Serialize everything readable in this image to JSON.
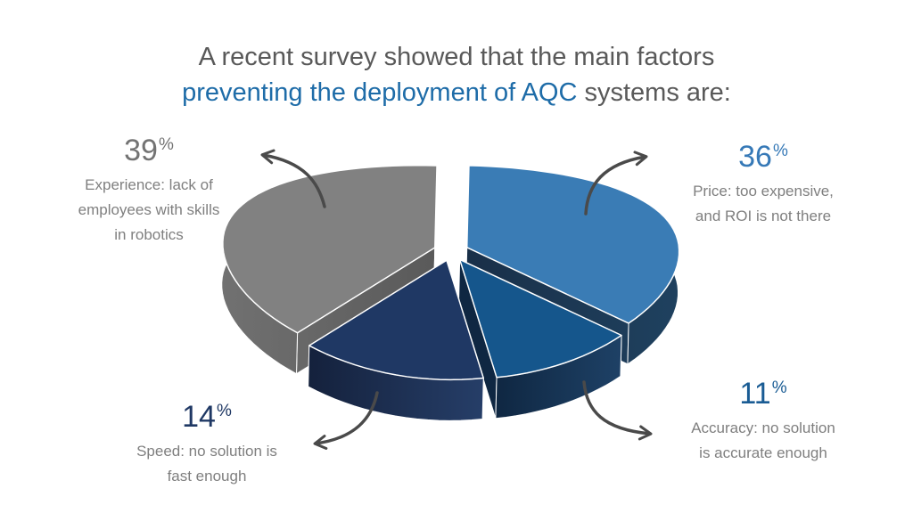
{
  "title": {
    "line1": "A recent survey showed that the main factors",
    "line2_blue": "preventing the deployment of AQC",
    "line2_gray": " systems are:"
  },
  "chart_data": {
    "type": "pie",
    "title": "A recent survey showed that the main factors preventing the deployment of AQC systems are:",
    "start_angle_deg": 0,
    "direction": "clockwise",
    "style": "3d-exploded",
    "slices": [
      {
        "id": "price",
        "label": "Price: too expensive, and ROI is not there",
        "value": 36,
        "color": "#3A7CB5",
        "side_dark": "#192F48",
        "side_light": "#1F415F"
      },
      {
        "id": "accuracy",
        "label": "Accuracy: no solution is accurate enough",
        "value": 11,
        "color": "#15568C",
        "side_dark": "#0F2742",
        "side_light": "#1E4166"
      },
      {
        "id": "speed",
        "label": "Speed: no solution is fast enough",
        "value": 14,
        "color": "#1F3864",
        "side_dark": "#131F39",
        "side_light": "#27406B"
      },
      {
        "id": "experience",
        "label": "Experience: lack of employees with skills in robotics",
        "value": 39,
        "color": "#818181",
        "side_dark": "#717171",
        "side_light": "#595959"
      }
    ]
  },
  "callouts": {
    "experience": {
      "pct": "39",
      "pct_symbol": "%",
      "pct_color": "#737373",
      "line1": "Experience: lack of",
      "line2": "employees with skills",
      "line3": "in robotics"
    },
    "price": {
      "pct": "36",
      "pct_symbol": "%",
      "pct_color": "#3679B7",
      "line1": "Price: too expensive,",
      "line2": "and ROI is not there",
      "line3": ""
    },
    "accuracy": {
      "pct": "11",
      "pct_symbol": "%",
      "pct_color": "#1A5C94",
      "line1": "Accuracy: no solution",
      "line2": "is accurate enough",
      "line3": ""
    },
    "speed": {
      "pct": "14",
      "pct_symbol": "%",
      "pct_color": "#1F3864",
      "line1": "Speed: no solution is",
      "line2": "fast enough",
      "line3": ""
    }
  }
}
